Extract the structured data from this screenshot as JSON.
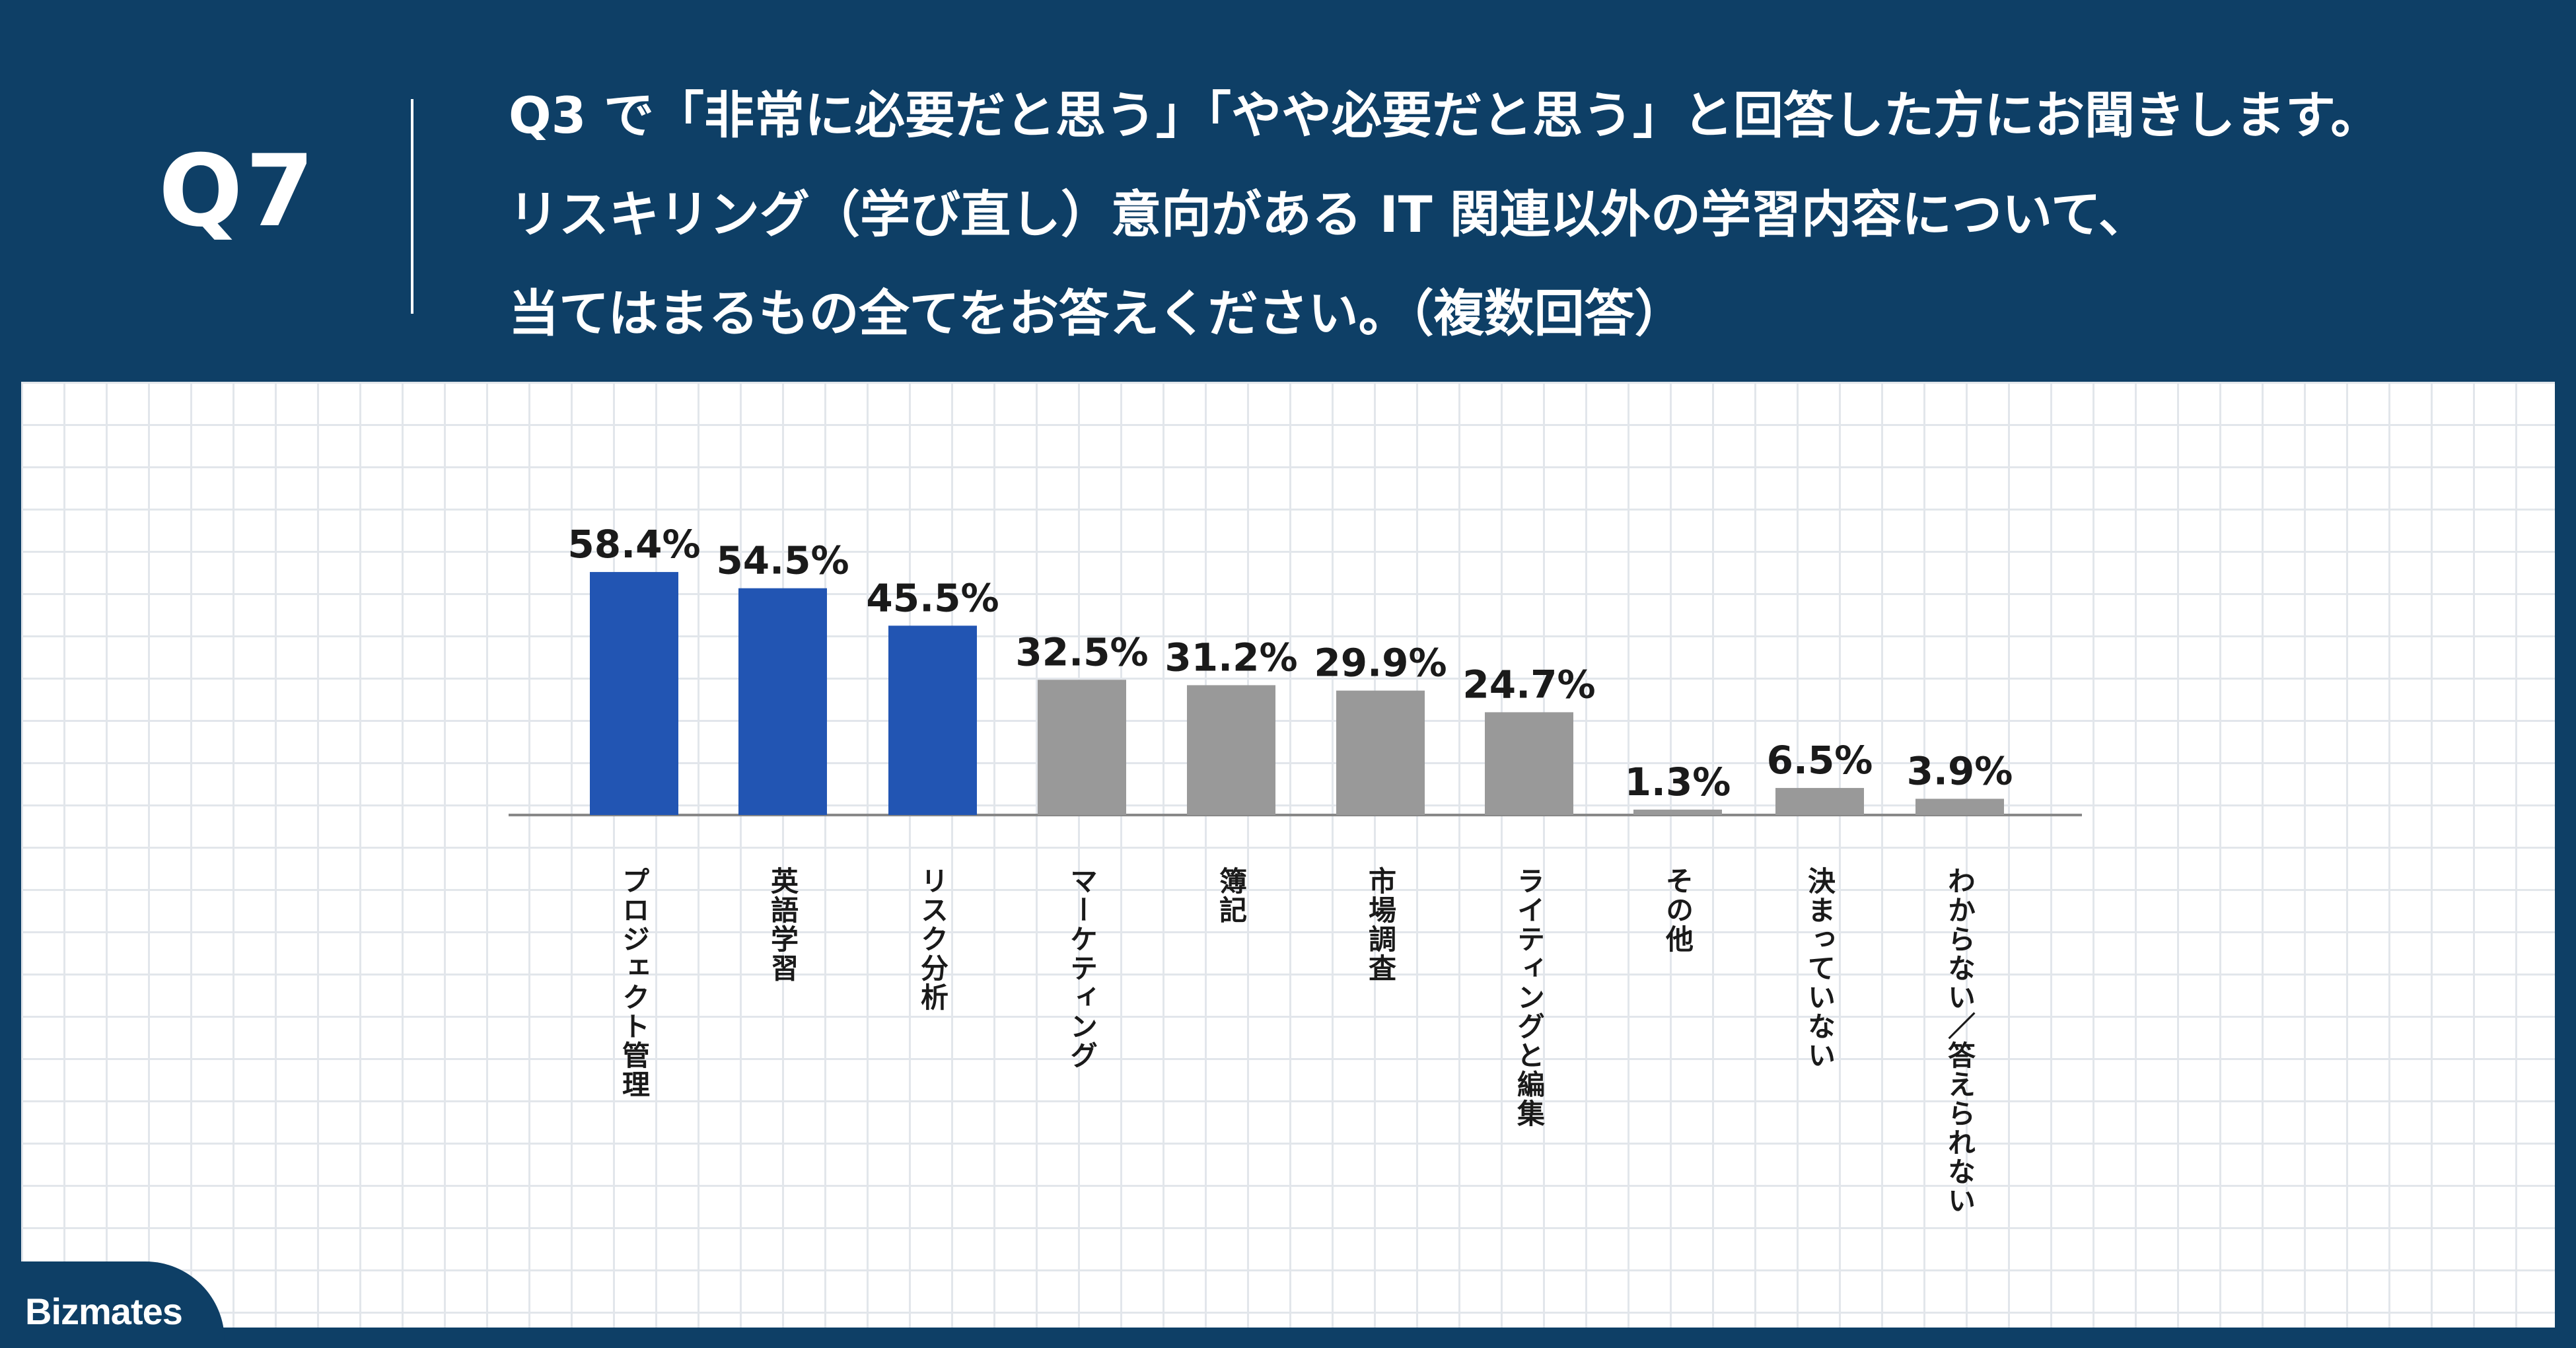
{
  "header": {
    "question_number": "Q7",
    "question_lines": [
      "Q3 で「非常に必要だと思う」「やや必要だと思う」と回答した方にお聞きします。",
      "リスキリング（学び直し）意向がある IT 関連以外の学習内容について、",
      "当てはまるもの全てをお答えください。（複数回答）"
    ]
  },
  "logo": {
    "text": "Bizmates"
  },
  "colors": {
    "header_bg": "#0e3f66",
    "highlight_bar": "#2255b3",
    "normal_bar": "#999999",
    "axis": "#888888"
  },
  "chart_data": {
    "type": "bar",
    "categories": [
      "プロジェクト管理",
      "英語学習",
      "リスク分析",
      "マーケティング",
      "簿記",
      "市場調査",
      "ライティングと編集",
      "その他",
      "決まっていない",
      "わからない／答えられない"
    ],
    "values": [
      58.4,
      54.5,
      45.5,
      32.5,
      31.2,
      29.9,
      24.7,
      1.3,
      6.5,
      3.9
    ],
    "value_labels": [
      "58.4%",
      "54.5%",
      "45.5%",
      "32.5%",
      "31.2%",
      "29.9%",
      "24.7%",
      "1.3%",
      "6.5%",
      "3.9%"
    ],
    "highlighted": [
      true,
      true,
      true,
      false,
      false,
      false,
      false,
      false,
      false,
      false
    ],
    "unit": "%",
    "ylim": [
      0,
      100
    ],
    "grid": false,
    "legend": "none"
  }
}
